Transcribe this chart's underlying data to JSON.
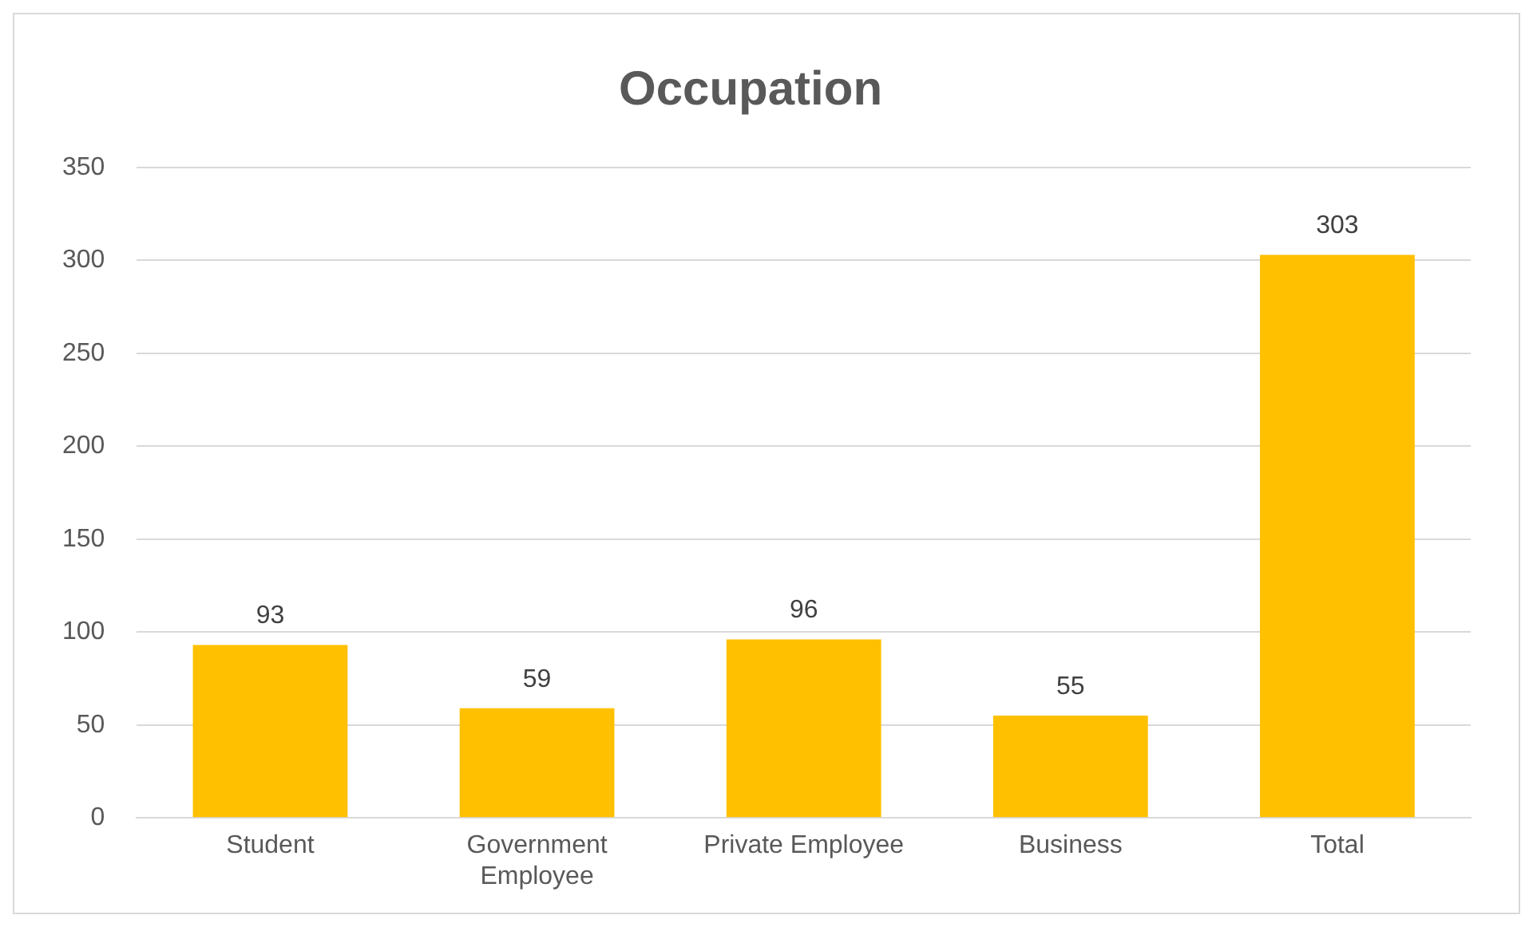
{
  "chart_data": {
    "type": "bar",
    "title": "Occupation",
    "categories": [
      "Student",
      "Government Employee",
      "Private Employee",
      "Business",
      "Total"
    ],
    "values": [
      93,
      59,
      96,
      55,
      303
    ],
    "color": "#ffc000",
    "ylim": [
      0,
      350
    ],
    "yticks": [
      0,
      50,
      100,
      150,
      200,
      250,
      300,
      350
    ],
    "grid": "y",
    "data_labels": true,
    "legend": false
  }
}
